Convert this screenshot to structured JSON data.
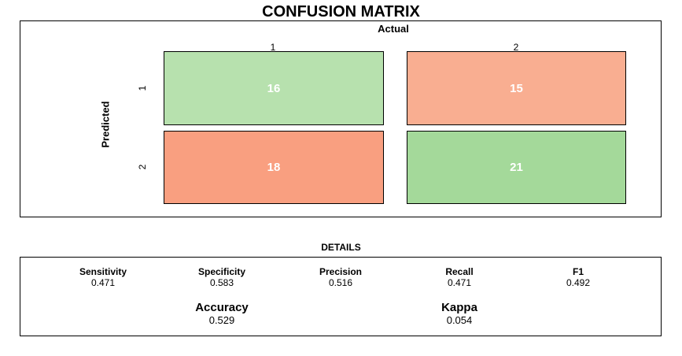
{
  "chart_data": {
    "type": "heatmap",
    "title": "CONFUSION MATRIX",
    "xlabel": "Actual",
    "ylabel": "Predicted",
    "columns": [
      "1",
      "2"
    ],
    "rows": [
      "1",
      "2"
    ],
    "values": [
      [
        16,
        15
      ],
      [
        18,
        21
      ]
    ],
    "colors": [
      [
        "#b7e1ae",
        "#f9ae91"
      ],
      [
        "#f99f80",
        "#a4d99a"
      ]
    ],
    "details_title": "DETAILS",
    "metrics": [
      {
        "name": "Sensitivity",
        "value": "0.471"
      },
      {
        "name": "Specificity",
        "value": "0.583"
      },
      {
        "name": "Precision",
        "value": "0.516"
      },
      {
        "name": "Recall",
        "value": "0.471"
      },
      {
        "name": "F1",
        "value": "0.492"
      }
    ],
    "summary": [
      {
        "name": "Accuracy",
        "value": "0.529"
      },
      {
        "name": "Kappa",
        "value": "0.054"
      }
    ]
  }
}
